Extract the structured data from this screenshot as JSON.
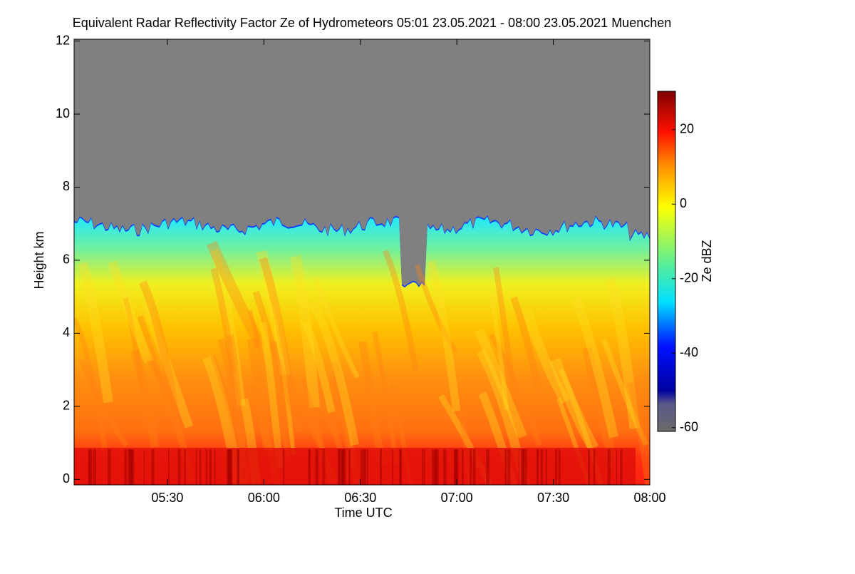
{
  "chart_data": {
    "type": "heatmap",
    "title": "Equivalent Radar Reflectivity Factor Ze of Hydrometeors   05:01 23.05.2021 - 08:00 23.05.2021 Muenchen",
    "xlabel": "Time UTC",
    "ylabel": "Height km",
    "colorbar_label": "Ze dBZ",
    "xlim": [
      301,
      480
    ],
    "xticks": [
      {
        "value": 330,
        "label": "05:30"
      },
      {
        "value": 360,
        "label": "06:00"
      },
      {
        "value": 390,
        "label": "06:30"
      },
      {
        "value": 420,
        "label": "07:00"
      },
      {
        "value": 450,
        "label": "07:30"
      },
      {
        "value": 480,
        "label": "08:00"
      }
    ],
    "ylim": [
      -0.15,
      12.05
    ],
    "yticks": [
      0,
      2,
      4,
      6,
      8,
      10,
      12
    ],
    "zlim": [
      -61,
      30.3
    ],
    "zticks": [
      -60,
      -40,
      -20,
      0,
      20
    ]
  }
}
